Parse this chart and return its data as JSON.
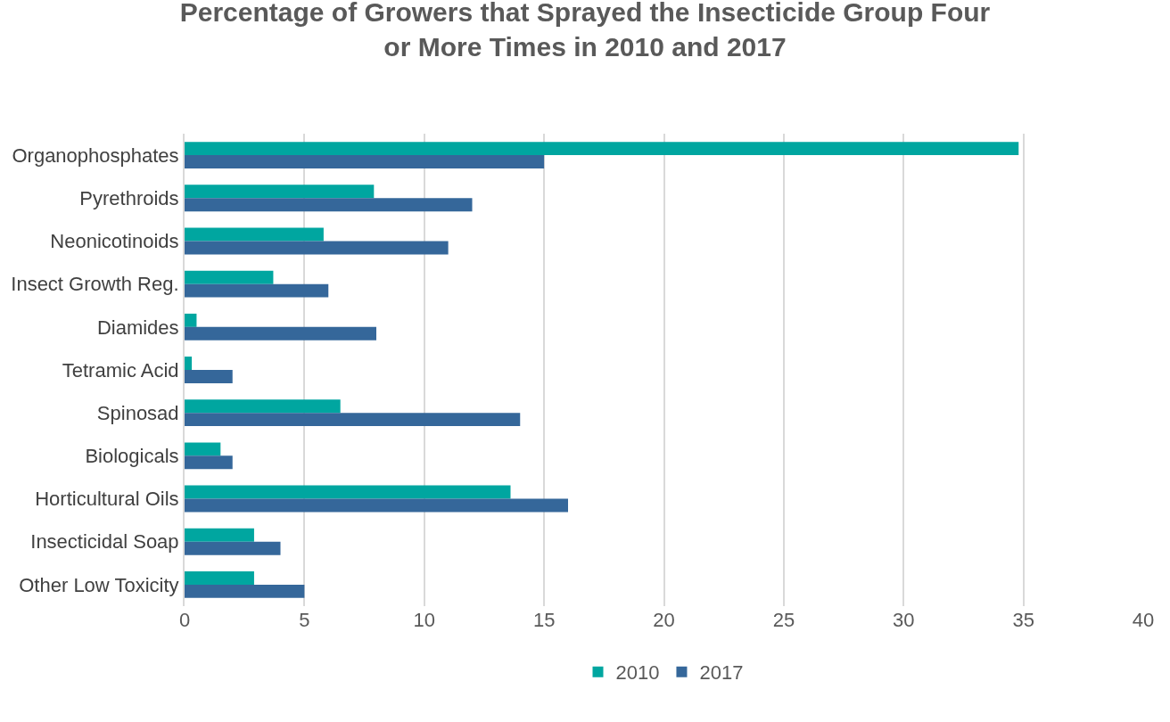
{
  "chart_data": {
    "type": "bar",
    "orientation": "horizontal",
    "title": "Percentage of Growers that Sprayed the Insecticide Group Four or More Times in 2010 and 2017",
    "categories": [
      "Organophosphates",
      "Pyrethroids",
      "Neonicotinoids",
      "Insect Growth Reg.",
      "Diamides",
      "Tetramic Acid",
      "Spinosad",
      "Biologicals",
      "Horticultural Oils",
      "Insecticidal Soap",
      "Other Low Toxicity"
    ],
    "series": [
      {
        "name": "2010",
        "color": "#00a6a0",
        "values": [
          34.8,
          7.9,
          5.8,
          3.7,
          0.5,
          0.3,
          6.5,
          1.5,
          13.6,
          2.9,
          2.9
        ]
      },
      {
        "name": "2017",
        "color": "#35679a",
        "values": [
          15,
          12,
          11,
          6,
          8,
          2,
          14,
          2,
          16,
          4,
          5
        ]
      }
    ],
    "xlim": [
      0,
      40
    ],
    "xticks": [
      0,
      5,
      10,
      15,
      20,
      25,
      30,
      35,
      40
    ],
    "grid": "x",
    "legend": "bottom"
  }
}
